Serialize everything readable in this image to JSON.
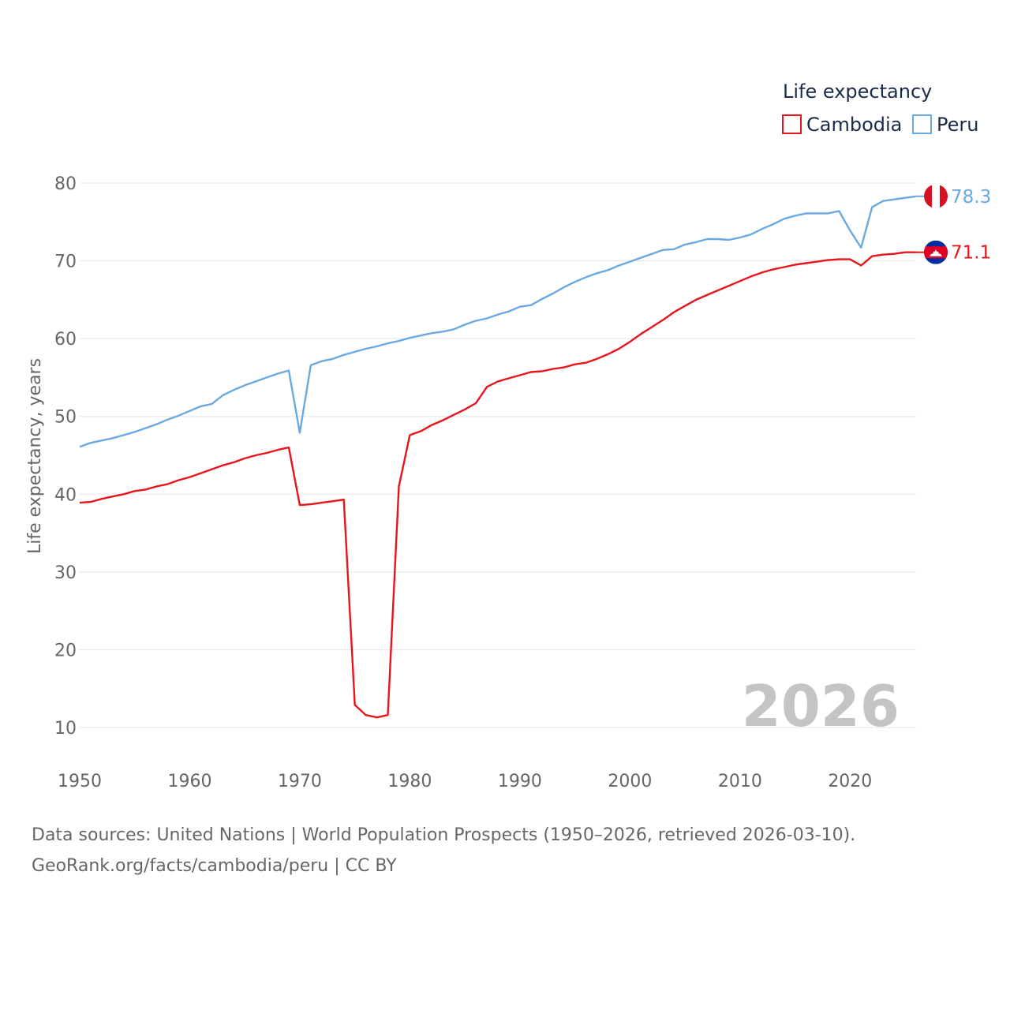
{
  "chart_data": {
    "type": "line",
    "legend_title": "Life expectancy",
    "ylabel": "Life expectancy, years",
    "xlabel": "",
    "xlim": [
      1950,
      2026
    ],
    "ylim": [
      5,
      84
    ],
    "x_ticks": [
      1950,
      1960,
      1970,
      1980,
      1990,
      2000,
      2010,
      2020
    ],
    "y_ticks": [
      10,
      20,
      30,
      40,
      50,
      60,
      70,
      80
    ],
    "year": "2026",
    "x": [
      1950,
      1951,
      1952,
      1953,
      1954,
      1955,
      1956,
      1957,
      1958,
      1959,
      1960,
      1961,
      1962,
      1963,
      1964,
      1965,
      1966,
      1967,
      1968,
      1969,
      1970,
      1971,
      1972,
      1973,
      1974,
      1975,
      1976,
      1977,
      1978,
      1979,
      1980,
      1981,
      1982,
      1983,
      1984,
      1985,
      1986,
      1987,
      1988,
      1989,
      1990,
      1991,
      1992,
      1993,
      1994,
      1995,
      1996,
      1997,
      1998,
      1999,
      2000,
      2001,
      2002,
      2003,
      2004,
      2005,
      2006,
      2007,
      2008,
      2009,
      2010,
      2011,
      2012,
      2013,
      2014,
      2015,
      2016,
      2017,
      2018,
      2019,
      2020,
      2021,
      2022,
      2023,
      2024,
      2025,
      2026
    ],
    "series": [
      {
        "name": "Cambodia",
        "color": "#e8141b",
        "end_label": "71.1",
        "values": [
          38.9,
          39.0,
          39.4,
          39.7,
          40.0,
          40.4,
          40.6,
          41.0,
          41.3,
          41.8,
          42.2,
          42.7,
          43.2,
          43.7,
          44.1,
          44.6,
          45.0,
          45.3,
          45.7,
          46.0,
          38.6,
          38.7,
          38.9,
          39.1,
          39.3,
          12.9,
          11.6,
          11.3,
          11.6,
          41.0,
          47.6,
          48.1,
          48.9,
          49.5,
          50.2,
          50.9,
          51.7,
          53.8,
          54.5,
          54.9,
          55.3,
          55.7,
          55.8,
          56.1,
          56.3,
          56.7,
          56.9,
          57.4,
          58.0,
          58.7,
          59.6,
          60.6,
          61.5,
          62.4,
          63.4,
          64.2,
          65.0,
          65.6,
          66.2,
          66.8,
          67.4,
          68.0,
          68.5,
          68.9,
          69.2,
          69.5,
          69.7,
          69.9,
          70.1,
          70.2,
          70.2,
          69.4,
          70.6,
          70.8,
          70.9,
          71.1,
          71.1
        ]
      },
      {
        "name": "Peru",
        "color": "#6aa9e0",
        "end_label": "78.3",
        "values": [
          46.1,
          46.6,
          46.9,
          47.2,
          47.6,
          48.0,
          48.5,
          49.0,
          49.6,
          50.1,
          50.7,
          51.3,
          51.6,
          52.7,
          53.4,
          54.0,
          54.5,
          55.0,
          55.5,
          55.9,
          47.9,
          56.6,
          57.1,
          57.4,
          57.9,
          58.3,
          58.7,
          59.0,
          59.4,
          59.7,
          60.1,
          60.4,
          60.7,
          60.9,
          61.2,
          61.8,
          62.3,
          62.6,
          63.1,
          63.5,
          64.1,
          64.3,
          65.1,
          65.8,
          66.6,
          67.3,
          67.9,
          68.4,
          68.8,
          69.4,
          69.9,
          70.4,
          70.9,
          71.4,
          71.5,
          72.1,
          72.4,
          72.8,
          72.8,
          72.7,
          73.0,
          73.4,
          74.1,
          74.7,
          75.4,
          75.8,
          76.1,
          76.1,
          76.1,
          76.4,
          73.9,
          71.7,
          76.9,
          77.7,
          77.9,
          78.1,
          78.3
        ]
      }
    ],
    "legend_position": "top-right"
  },
  "footer": {
    "line1": "Data sources: United Nations | World Population Prospects (1950–2026, retrieved 2026-03-10).",
    "line2": "GeoRank.org/facts/cambodia/peru | CC BY"
  },
  "flags": {
    "cambodia": "cambodia-flag-icon",
    "peru": "peru-flag-icon"
  }
}
